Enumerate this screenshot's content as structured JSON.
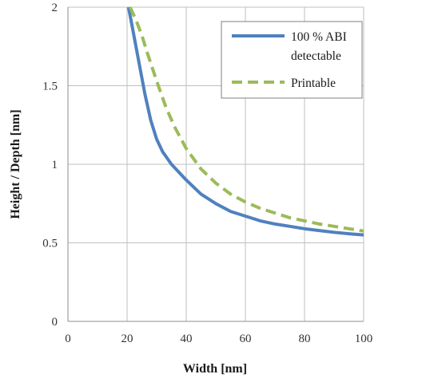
{
  "chart_data": {
    "type": "line",
    "title": "",
    "xlabel": "Width [nm]",
    "ylabel": "Height / Depth [nm]",
    "xlim": [
      0,
      100
    ],
    "ylim": [
      0,
      2
    ],
    "xticks": [
      0,
      20,
      40,
      60,
      80,
      100
    ],
    "yticks": [
      0,
      0.5,
      1,
      1.5,
      2
    ],
    "ytick_labels": [
      "0",
      "0.5",
      "1",
      "1.5",
      "2"
    ],
    "grid": true,
    "legend_position": "top-right",
    "series": [
      {
        "name": "100 % ABI detectable",
        "color": "#4f81bd",
        "style": "solid",
        "x": [
          20.5,
          22,
          24,
          26,
          28,
          30,
          32,
          35,
          40,
          45,
          50,
          55,
          60,
          65,
          70,
          75,
          80,
          85,
          90,
          95,
          100
        ],
        "y": [
          2.0,
          1.85,
          1.65,
          1.45,
          1.28,
          1.16,
          1.08,
          1.0,
          0.9,
          0.81,
          0.75,
          0.7,
          0.67,
          0.64,
          0.62,
          0.605,
          0.59,
          0.578,
          0.567,
          0.558,
          0.55
        ]
      },
      {
        "name": "Printable",
        "color": "#9bbb59",
        "style": "dashed",
        "x": [
          21,
          23,
          25,
          27,
          30,
          33,
          36,
          40,
          45,
          50,
          55,
          60,
          65,
          70,
          75,
          80,
          85,
          90,
          95,
          100
        ],
        "y": [
          2.0,
          1.92,
          1.82,
          1.7,
          1.53,
          1.37,
          1.24,
          1.1,
          0.97,
          0.88,
          0.81,
          0.76,
          0.72,
          0.69,
          0.66,
          0.64,
          0.62,
          0.605,
          0.59,
          0.575
        ]
      }
    ]
  }
}
